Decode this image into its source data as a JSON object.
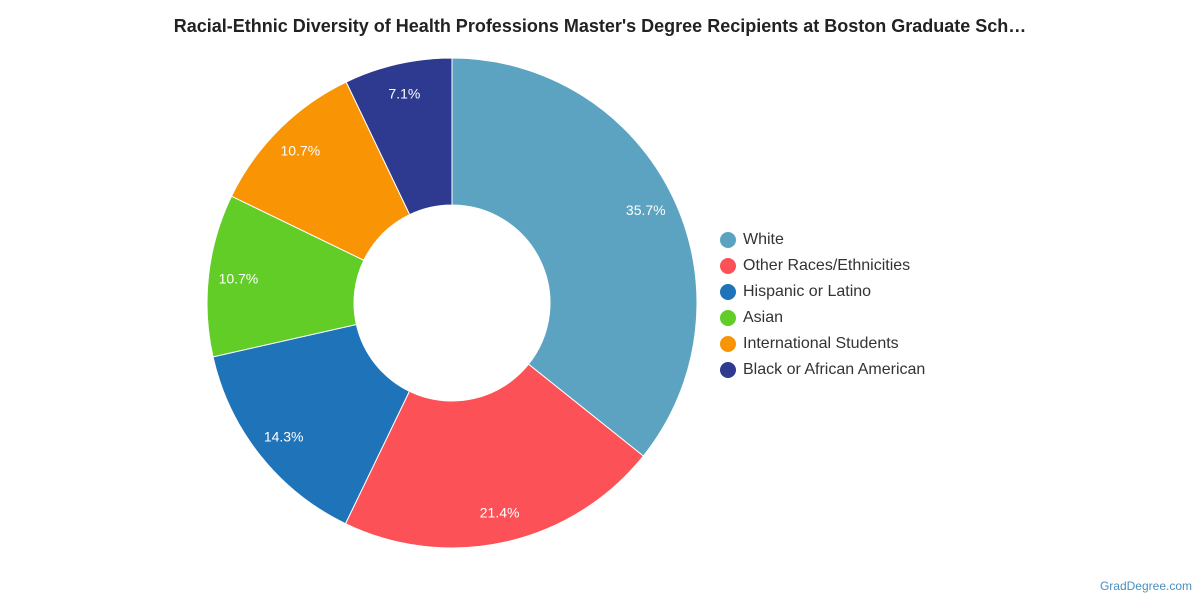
{
  "chart_data": {
    "type": "pie",
    "title": "Racial-Ethnic Diversity of Health Professions Master's Degree Recipients at Boston Graduate Sch…",
    "donut": true,
    "legend_position": "right",
    "slices": [
      {
        "label": "White",
        "value": 35.7,
        "display": "35.7%",
        "color": "#5ba3c1"
      },
      {
        "label": "Other Races/Ethnicities",
        "value": 21.4,
        "display": "21.4%",
        "color": "#fc5156"
      },
      {
        "label": "Hispanic or Latino",
        "value": 14.3,
        "display": "14.3%",
        "color": "#1f73b9"
      },
      {
        "label": "Asian",
        "value": 10.7,
        "display": "10.7%",
        "color": "#62cd26"
      },
      {
        "label": "International Students",
        "value": 10.7,
        "display": "10.7%",
        "color": "#f99404"
      },
      {
        "label": "Black or African American",
        "value": 7.1,
        "display": "7.1%",
        "color": "#2d3a8f"
      }
    ]
  },
  "watermark": "GradDegree.com"
}
